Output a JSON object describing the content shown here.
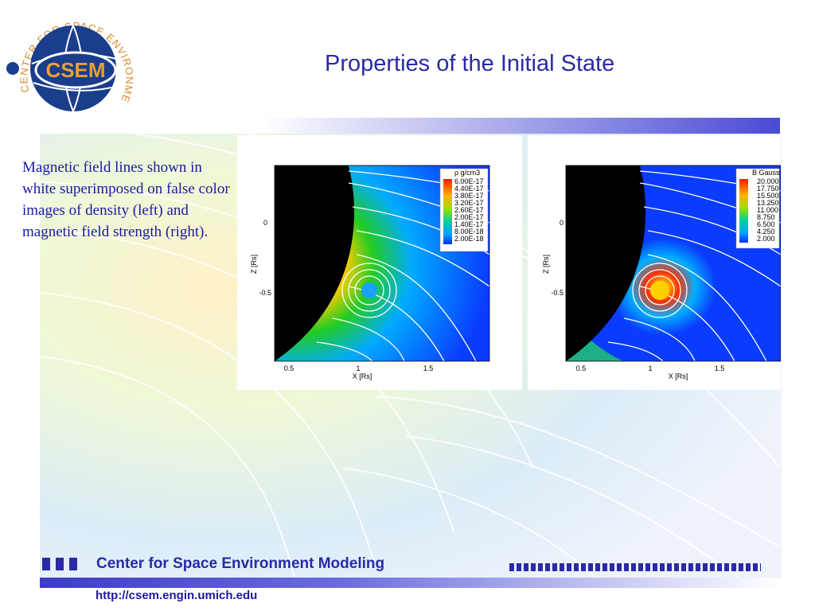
{
  "slide": {
    "title": "Properties of the Initial State",
    "description": "Magnetic field lines shown in white superimposed on false color images of density (left) and magnetic field strength (right)."
  },
  "logo": {
    "ring_text": "CENTER FOR SPACE ENVIRONMENT MODELING",
    "center_text": "CSEM",
    "colors": {
      "ring": "#d98a2b",
      "globe": "#1a3d8c",
      "text": "#e8a030"
    }
  },
  "left_plot": {
    "legend_title": "ρ g/cm3",
    "legend_values": [
      "6.00E-17",
      "4.40E-17",
      "3.80E-17",
      "3.20E-17",
      "2.60E-17",
      "2.00E-17",
      "1.40E-17",
      "8.00E-18",
      "2.00E-18"
    ],
    "y_ticks": [
      "0",
      "-0.5"
    ],
    "x_ticks": [
      "0.5",
      "1",
      "1.5"
    ],
    "xlabel": "X [Rs]",
    "ylabel": "Z [Rs]"
  },
  "right_plot": {
    "legend_title": "B Gauss",
    "legend_values": [
      "20.000",
      "17.750",
      "15.500",
      "13.250",
      "11.000",
      "8.750",
      "6.500",
      "4.250",
      "2.000"
    ],
    "y_ticks": [
      "0",
      "-0.5"
    ],
    "x_ticks": [
      "0.5",
      "1",
      "1.5"
    ],
    "xlabel": "X [Rs]",
    "ylabel": "Z [Rs]"
  },
  "footer": {
    "org_name": "Center for Space Environment Modeling",
    "url": "http://csem.engin.umich.edu"
  },
  "colors": {
    "accent": "#2a2aa8",
    "plot_background": "#0a3cff"
  }
}
